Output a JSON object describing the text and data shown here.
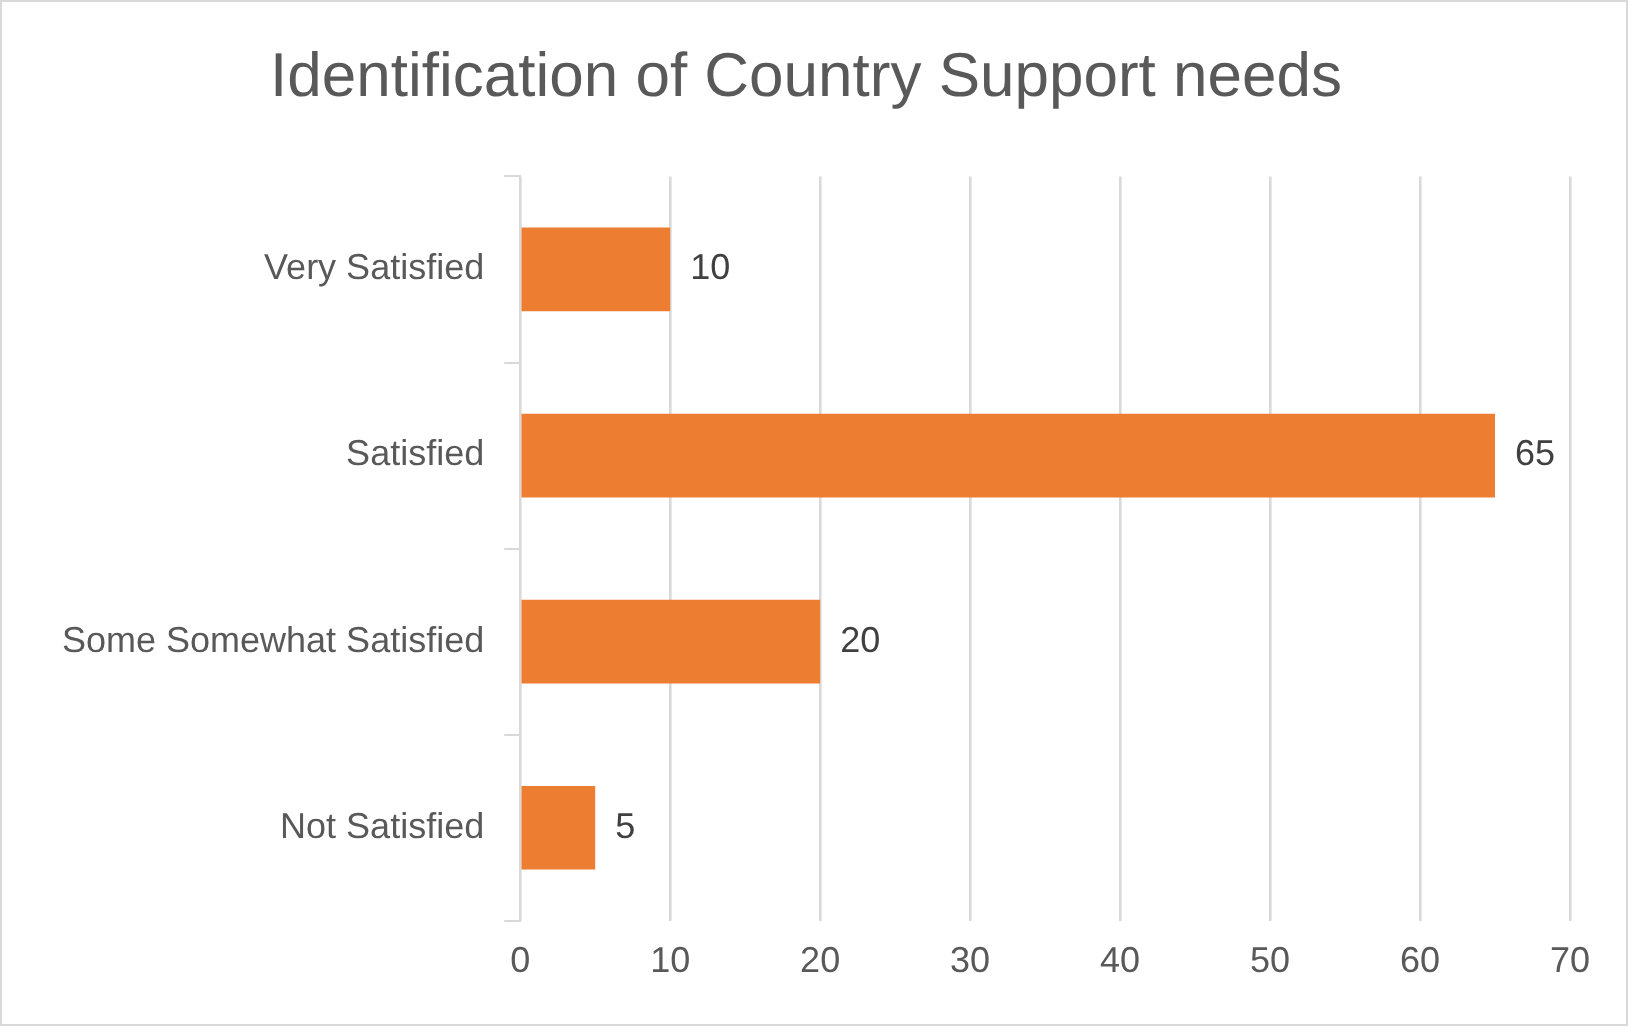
{
  "chart_data": {
    "type": "bar",
    "orientation": "horizontal",
    "title": "Identification of Country Support needs",
    "categories": [
      "Very Satisfied",
      "Satisfied",
      "Some Somewhat Satisfied",
      "Not Satisfied"
    ],
    "values": [
      10,
      65,
      20,
      5
    ],
    "color": "#ed7d31",
    "xlim": [
      0,
      70
    ],
    "xticks": [
      0,
      10,
      20,
      30,
      40,
      50,
      60,
      70
    ],
    "grid": "x",
    "legend": false,
    "data_labels": true
  }
}
